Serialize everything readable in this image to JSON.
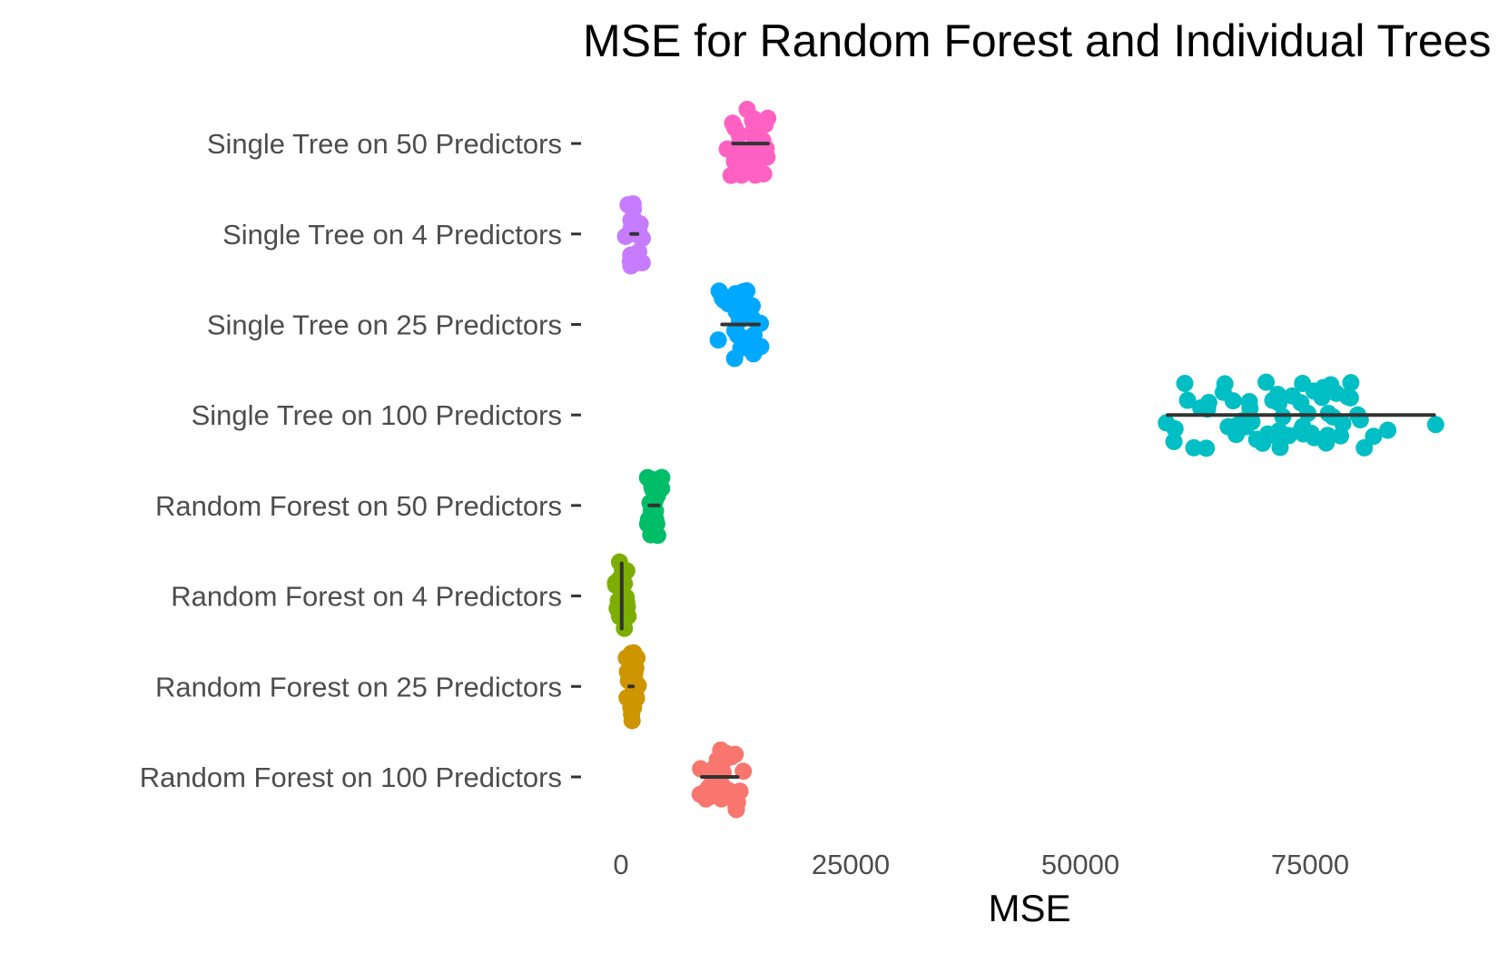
{
  "chart_data": {
    "type": "scatter",
    "subtype": "horizontal jittered strip plot with min-max range lines",
    "title": "MSE for Random Forest and Individual Trees",
    "xlabel": "MSE",
    "ylabel": "",
    "xlim": [
      -2500,
      93000
    ],
    "xticks": [
      0,
      25000,
      50000,
      75000
    ],
    "xtick_labels": [
      "0",
      "25000",
      "50000",
      "75000"
    ],
    "grid": false,
    "legend": "none",
    "categories": [
      "Random Forest on 100 Predictors",
      "Random Forest on 25 Predictors",
      "Random Forest on 4 Predictors",
      "Random Forest on 50 Predictors",
      "Single Tree on 100 Predictors",
      "Single Tree on 25 Predictors",
      "Single Tree on 4 Predictors",
      "Single Tree on 50 Predictors"
    ],
    "series": [
      {
        "category": "Random Forest on 100 Predictors",
        "color": "#F8766D",
        "min": 8800,
        "max": 12700,
        "values": [
          9800,
          10400,
          11100,
          11900,
          12500,
          9300,
          10000,
          10700,
          11600,
          12200,
          10900,
          9200,
          11300,
          12000,
          10300,
          9700,
          11700,
          10100,
          12600,
          9000,
          10600,
          11200,
          9500,
          12300,
          10800,
          11400,
          9900,
          8800,
          12700,
          10500,
          11000,
          11800
        ]
      },
      {
        "category": "Random Forest on 25 Predictors",
        "color": "#CD9600",
        "min": 900,
        "max": 1300,
        "values": [
          1000,
          1200,
          1100,
          900,
          1300,
          1050,
          1150,
          950,
          1250,
          1100,
          1000,
          1200,
          1080,
          1120,
          980,
          1220,
          1020,
          1180,
          1060,
          1140,
          940,
          1260,
          1010,
          1190
        ]
      },
      {
        "category": "Random Forest on 4 Predictors",
        "color": "#7CAE00",
        "min": 80,
        "max": 120,
        "values": [
          100,
          90,
          110,
          85,
          115,
          95,
          105,
          100,
          92,
          108,
          98,
          102,
          88,
          112,
          96,
          104,
          100,
          94,
          106,
          99,
          101,
          91,
          109,
          97
        ]
      },
      {
        "category": "Random Forest on 50 Predictors",
        "color": "#00BE67",
        "min": 3100,
        "max": 4100,
        "values": [
          3400,
          3800,
          3600,
          3200,
          4000,
          3500,
          3900,
          3300,
          3700,
          3100,
          4100,
          3450,
          3850,
          3650,
          3250,
          3950,
          3550,
          3750,
          3350,
          3600,
          3500,
          3800,
          3700,
          3400
        ]
      },
      {
        "category": "Single Tree on 100 Predictors",
        "color": "#00BFC4",
        "min": 59500,
        "max": 88500,
        "values": [
          59500,
          60500,
          61500,
          62500,
          63000,
          64000,
          65000,
          66000,
          66500,
          67000,
          67500,
          68000,
          68500,
          69000,
          69500,
          70000,
          70500,
          71000,
          71500,
          72000,
          72500,
          73000,
          73500,
          74000,
          74500,
          75000,
          75500,
          76000,
          76500,
          77000,
          77500,
          78000,
          78500,
          79000,
          80000,
          81000,
          82000,
          88500,
          64500,
          67500,
          70500,
          73500,
          76500,
          79500,
          65500,
          68500,
          71500,
          74500,
          77500,
          60000,
          62000,
          66200,
          69200,
          72300,
          75800,
          78200,
          80500,
          83000,
          63500,
          67200,
          70800,
          74200,
          76800,
          79200
        ]
      },
      {
        "category": "Single Tree on 25 Predictors",
        "color": "#00A9FF",
        "min": 11000,
        "max": 15000,
        "values": [
          11500,
          12500,
          13500,
          14500,
          12000,
          13000,
          14000,
          11200,
          12800,
          13800,
          14800,
          11800,
          12300,
          13300,
          14300,
          11600,
          12600,
          13600,
          14600,
          12200,
          13200,
          14200,
          11400,
          15000,
          12900,
          13900,
          11000,
          12700
        ]
      },
      {
        "category": "Single Tree on 4 Predictors",
        "color": "#C77CFF",
        "min": 1100,
        "max": 1800,
        "values": [
          1200,
          1400,
          1600,
          1300,
          1500,
          1700,
          1250,
          1450,
          1650,
          1350,
          1550,
          1750,
          1150,
          1800,
          1420,
          1580,
          1280,
          1620,
          1380,
          1480,
          1100,
          1520,
          1330,
          1670
        ]
      },
      {
        "category": "Single Tree on 50 Predictors",
        "color": "#FF61C3",
        "min": 12200,
        "max": 16000,
        "values": [
          12500,
          13500,
          14500,
          15500,
          13000,
          14000,
          15000,
          12800,
          13800,
          14800,
          15800,
          12300,
          13300,
          14300,
          15300,
          12600,
          13600,
          14600,
          15600,
          13100,
          14100,
          15100,
          12200,
          16000,
          13900,
          14900,
          12900,
          15400,
          13400,
          14400
        ]
      }
    ]
  }
}
